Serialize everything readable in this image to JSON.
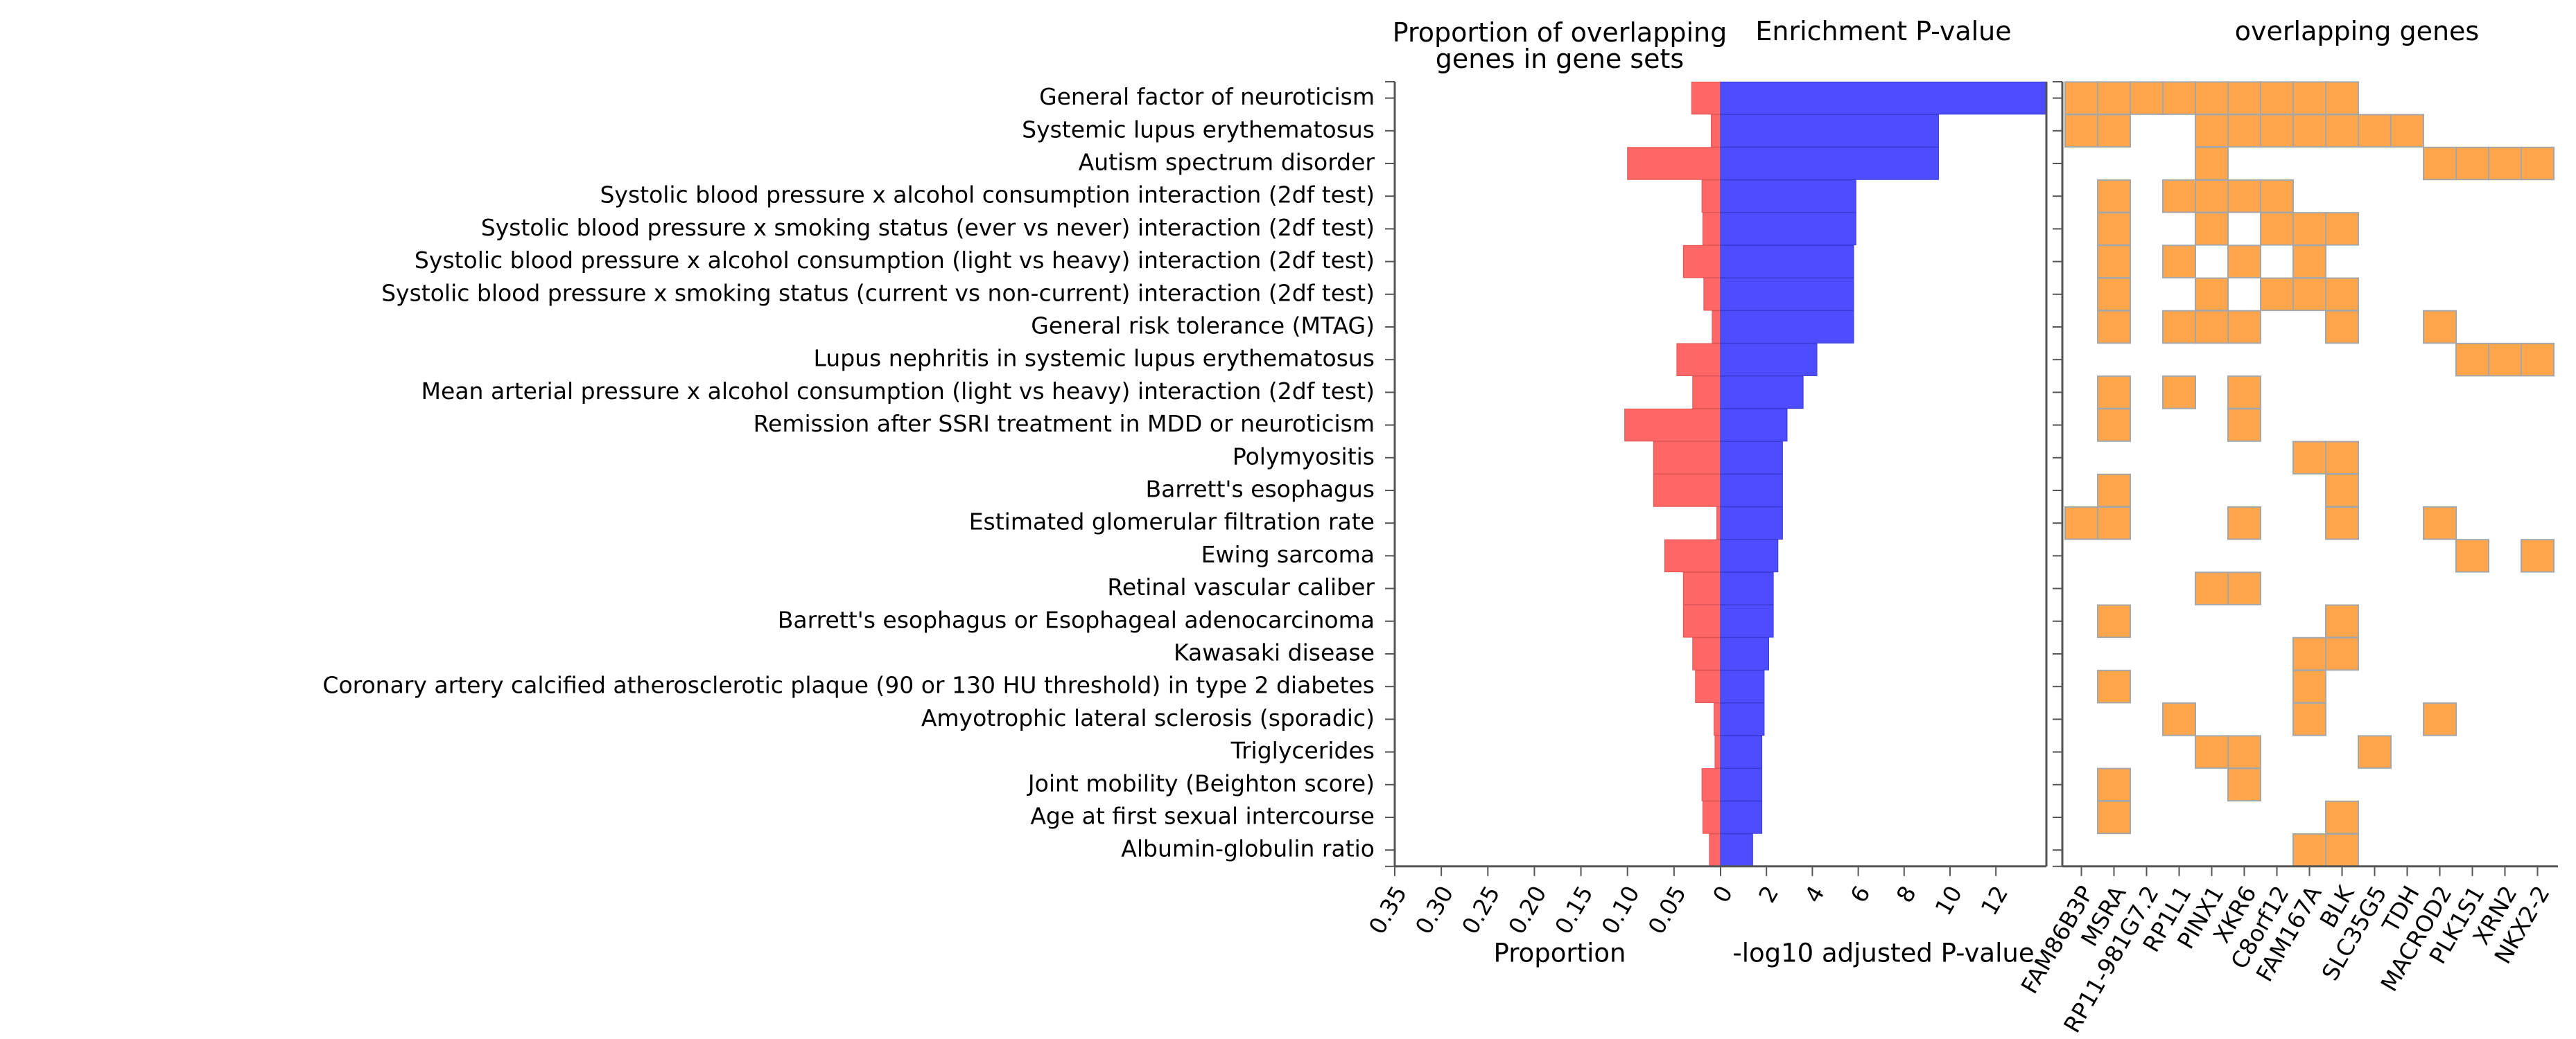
{
  "chart_data": {
    "type": "bar",
    "categories": [
      "General factor of neuroticism",
      "Systemic lupus erythematosus",
      "Autism spectrum disorder",
      "Systolic blood pressure x alcohol consumption interaction (2df test)",
      "Systolic blood pressure x smoking status (ever vs never) interaction (2df test)",
      "Systolic blood pressure x alcohol consumption (light vs heavy) interaction (2df test)",
      "Systolic blood pressure x smoking status (current vs non-current) interaction (2df test)",
      "General risk tolerance (MTAG)",
      "Lupus nephritis in systemic lupus erythematosus",
      "Mean arterial pressure x alcohol consumption (light vs heavy) interaction (2df test)",
      "Remission after SSRI treatment in MDD or neuroticism",
      "Polymyositis",
      "Barrett's esophagus",
      "Estimated glomerular filtration rate",
      "Ewing sarcoma",
      "Retinal vascular caliber",
      "Barrett's esophagus or Esophageal adenocarcinoma",
      "Kawasaki disease",
      "Coronary artery calcified atherosclerotic plaque (90 or 130 HU threshold) in type 2 diabetes",
      "Amyotrophic lateral sclerosis (sporadic)",
      "Triglycerides",
      "Joint mobility (Beighton score)",
      "Age at first sexual intercourse",
      "Albumin-globulin ratio"
    ],
    "panels": [
      {
        "title": "Proportion of overlapping genes in gene sets",
        "title_lines": [
          "Proportion of overlapping",
          "genes in gene sets"
        ],
        "xlabel": "Proportion",
        "xlim": [
          0.35,
          0
        ],
        "ticks": [
          "0.35",
          "0.30",
          "0.25",
          "0.20",
          "0.15",
          "0.10",
          "0.05",
          "0"
        ],
        "tick_values": [
          0.35,
          0.3,
          0.25,
          0.2,
          0.15,
          0.1,
          0.05,
          0
        ],
        "color": "#ff6666",
        "values": [
          0.031,
          0.01,
          0.1,
          0.02,
          0.019,
          0.04,
          0.018,
          0.009,
          0.047,
          0.03,
          0.103,
          0.072,
          0.072,
          0.004,
          0.06,
          0.04,
          0.04,
          0.03,
          0.027,
          0.007,
          0.006,
          0.02,
          0.019,
          0.012
        ]
      },
      {
        "title": "Enrichment P-value",
        "xlabel": "-log10 adjusted P-value",
        "xlim": [
          0,
          14.2
        ],
        "ticks": [
          "0",
          "2",
          "4",
          "6",
          "8",
          "10",
          "12"
        ],
        "tick_values": [
          0,
          2,
          4,
          6,
          8,
          10,
          12
        ],
        "color": "#4d4dff",
        "values": [
          14.2,
          9.5,
          9.5,
          5.9,
          5.9,
          5.8,
          5.8,
          5.8,
          4.2,
          3.6,
          2.9,
          2.7,
          2.7,
          2.7,
          2.5,
          2.3,
          2.3,
          2.1,
          1.9,
          1.9,
          1.8,
          1.8,
          1.8,
          1.4
        ]
      },
      {
        "title": "overlapping genes",
        "type": "heatmap",
        "genes": [
          "FAM86B3P",
          "MSRA",
          "RP11-981G7.2",
          "RP1L1",
          "PINX1",
          "XKR6",
          "C8orf12",
          "FAM167A",
          "BLK",
          "SLC35G5",
          "TDH",
          "MACROD2",
          "PLK1S1",
          "XRN2",
          "NKX2-2"
        ],
        "cell_color": "#ffa64d",
        "cells": [
          [
            0,
            1,
            2,
            3,
            4,
            5,
            6,
            7,
            8
          ],
          [
            0,
            1,
            4,
            5,
            6,
            7,
            8,
            9,
            10
          ],
          [
            4,
            11,
            12,
            13,
            14
          ],
          [
            1,
            3,
            4,
            5,
            6
          ],
          [
            1,
            4,
            6,
            7,
            8
          ],
          [
            1,
            3,
            5,
            7
          ],
          [
            1,
            4,
            6,
            7,
            8
          ],
          [
            1,
            3,
            4,
            5,
            8,
            11
          ],
          [
            12,
            13,
            14
          ],
          [
            1,
            3,
            5
          ],
          [
            1,
            5
          ],
          [
            7,
            8
          ],
          [
            1,
            8
          ],
          [
            0,
            1,
            5,
            8,
            11
          ],
          [
            12,
            14
          ],
          [
            4,
            5
          ],
          [
            1,
            8
          ],
          [
            7,
            8
          ],
          [
            1,
            7
          ],
          [
            3,
            7,
            11
          ],
          [
            4,
            5,
            9
          ],
          [
            1,
            5
          ],
          [
            1,
            8
          ],
          [
            7,
            8
          ]
        ]
      }
    ]
  }
}
